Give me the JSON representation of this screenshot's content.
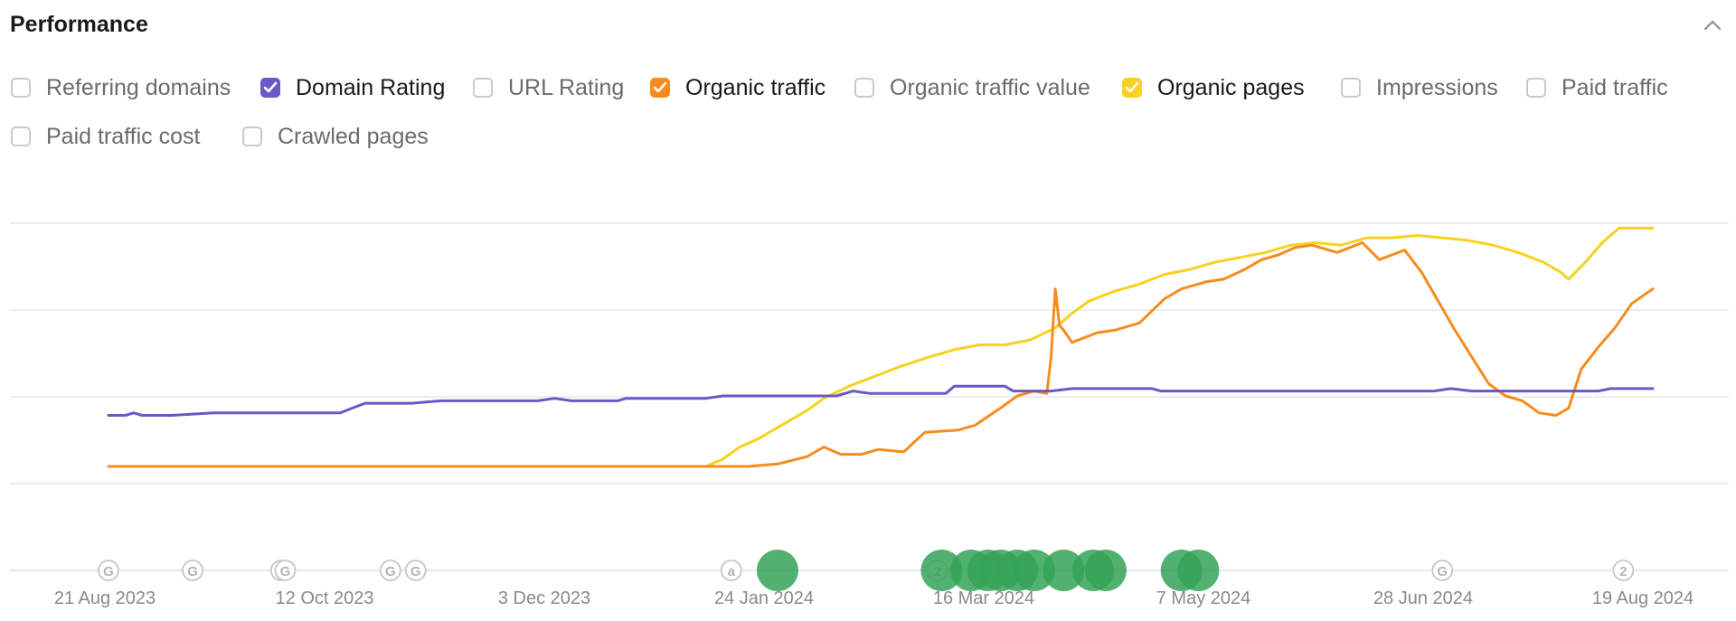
{
  "panel": {
    "title": "Performance"
  },
  "icons": {
    "collapse": "chevron-up-icon",
    "check": "check-icon"
  },
  "metrics": [
    {
      "label": "Referring domains",
      "checked": false,
      "color": ""
    },
    {
      "label": "Domain Rating",
      "checked": true,
      "color": "#6b57c9"
    },
    {
      "label": "URL Rating",
      "checked": false,
      "color": ""
    },
    {
      "label": "Organic traffic",
      "checked": true,
      "color": "#f68c1f"
    },
    {
      "label": "Organic traffic value",
      "checked": false,
      "color": ""
    },
    {
      "label": "Organic pages",
      "checked": true,
      "color": "#f7d21e"
    },
    {
      "label": "Impressions",
      "checked": false,
      "color": ""
    },
    {
      "label": "Paid traffic",
      "checked": false,
      "color": ""
    },
    {
      "label": "Paid traffic cost",
      "checked": false,
      "color": ""
    },
    {
      "label": "Crawled pages",
      "checked": false,
      "color": ""
    }
  ],
  "chart_data": {
    "type": "line",
    "x_ticks": [
      "21 Aug 2023",
      "12 Oct 2023",
      "3 Dec 2023",
      "24 Jan 2024",
      "16 Mar 2024",
      "7 May 2024",
      "28 Jun 2024",
      "19 Aug 2024"
    ],
    "x_domain": [
      "2023-08-21",
      "2024-08-19"
    ],
    "y_range": [
      0,
      100
    ],
    "grid": true,
    "series": [
      {
        "name": "Domain Rating",
        "color": "#6b57c9",
        "points": [
          [
            "2023-08-21",
            21
          ],
          [
            "2023-08-25",
            21
          ],
          [
            "2023-08-27",
            22
          ],
          [
            "2023-08-29",
            21
          ],
          [
            "2023-09-05",
            21
          ],
          [
            "2023-09-15",
            22
          ],
          [
            "2023-10-15",
            22
          ],
          [
            "2023-10-18",
            24
          ],
          [
            "2023-10-21",
            26
          ],
          [
            "2023-11-01",
            26
          ],
          [
            "2023-11-08",
            27
          ],
          [
            "2023-12-01",
            27
          ],
          [
            "2023-12-05",
            28
          ],
          [
            "2023-12-09",
            27
          ],
          [
            "2023-12-20",
            27
          ],
          [
            "2023-12-22",
            28
          ],
          [
            "2024-01-10",
            28
          ],
          [
            "2024-01-14",
            29
          ],
          [
            "2024-02-10",
            29
          ],
          [
            "2024-02-14",
            31
          ],
          [
            "2024-02-18",
            30
          ],
          [
            "2024-03-07",
            30
          ],
          [
            "2024-03-09",
            33
          ],
          [
            "2024-03-21",
            33
          ],
          [
            "2024-03-23",
            31
          ],
          [
            "2024-04-01",
            31
          ],
          [
            "2024-04-06",
            32
          ],
          [
            "2024-04-25",
            32
          ],
          [
            "2024-04-27",
            31
          ],
          [
            "2024-07-01",
            31
          ],
          [
            "2024-07-05",
            32
          ],
          [
            "2024-07-10",
            31
          ],
          [
            "2024-08-09",
            31
          ],
          [
            "2024-08-12",
            32
          ],
          [
            "2024-08-22",
            32
          ]
        ]
      },
      {
        "name": "Organic traffic",
        "color": "#f68c1f",
        "points": [
          [
            "2023-08-21",
            0
          ],
          [
            "2024-01-20",
            0
          ],
          [
            "2024-01-27",
            1
          ],
          [
            "2024-02-03",
            4
          ],
          [
            "2024-02-07",
            8
          ],
          [
            "2024-02-11",
            5
          ],
          [
            "2024-02-16",
            5
          ],
          [
            "2024-02-20",
            7
          ],
          [
            "2024-02-26",
            6
          ],
          [
            "2024-03-02",
            14
          ],
          [
            "2024-03-10",
            15
          ],
          [
            "2024-03-14",
            17
          ],
          [
            "2024-03-20",
            24
          ],
          [
            "2024-03-24",
            29
          ],
          [
            "2024-03-28",
            31
          ],
          [
            "2024-03-31",
            30
          ],
          [
            "2024-04-01",
            45
          ],
          [
            "2024-04-02",
            73
          ],
          [
            "2024-04-03",
            58
          ],
          [
            "2024-04-04",
            56
          ],
          [
            "2024-04-06",
            51
          ],
          [
            "2024-04-09",
            53
          ],
          [
            "2024-04-12",
            55
          ],
          [
            "2024-04-16",
            56
          ],
          [
            "2024-04-22",
            59
          ],
          [
            "2024-04-28",
            69
          ],
          [
            "2024-05-02",
            73
          ],
          [
            "2024-05-08",
            76
          ],
          [
            "2024-05-12",
            77
          ],
          [
            "2024-05-17",
            81
          ],
          [
            "2024-05-21",
            85
          ],
          [
            "2024-05-25",
            87
          ],
          [
            "2024-05-29",
            90
          ],
          [
            "2024-06-02",
            91
          ],
          [
            "2024-06-08",
            88
          ],
          [
            "2024-06-14",
            92
          ],
          [
            "2024-06-18",
            85
          ],
          [
            "2024-06-24",
            89
          ],
          [
            "2024-06-28",
            80
          ],
          [
            "2024-07-02",
            68
          ],
          [
            "2024-07-06",
            56
          ],
          [
            "2024-07-10",
            45
          ],
          [
            "2024-07-14",
            34
          ],
          [
            "2024-07-18",
            29
          ],
          [
            "2024-07-22",
            27
          ],
          [
            "2024-07-26",
            22
          ],
          [
            "2024-07-30",
            21
          ],
          [
            "2024-08-02",
            24
          ],
          [
            "2024-08-05",
            40
          ],
          [
            "2024-08-09",
            49
          ],
          [
            "2024-08-13",
            57
          ],
          [
            "2024-08-17",
            67
          ],
          [
            "2024-08-22",
            73
          ]
        ]
      },
      {
        "name": "Organic pages",
        "color": "#f7d21e",
        "points": [
          [
            "2023-08-21",
            0
          ],
          [
            "2024-01-10",
            0
          ],
          [
            "2024-01-14",
            3
          ],
          [
            "2024-01-18",
            8
          ],
          [
            "2024-01-22",
            11
          ],
          [
            "2024-01-26",
            15
          ],
          [
            "2024-01-30",
            19
          ],
          [
            "2024-02-03",
            23
          ],
          [
            "2024-02-07",
            28
          ],
          [
            "2024-02-13",
            33
          ],
          [
            "2024-02-19",
            37
          ],
          [
            "2024-02-25",
            41
          ],
          [
            "2024-03-03",
            45
          ],
          [
            "2024-03-09",
            48
          ],
          [
            "2024-03-15",
            50
          ],
          [
            "2024-03-21",
            50
          ],
          [
            "2024-03-27",
            52
          ],
          [
            "2024-04-02",
            57
          ],
          [
            "2024-04-06",
            63
          ],
          [
            "2024-04-10",
            68
          ],
          [
            "2024-04-16",
            72
          ],
          [
            "2024-04-22",
            75
          ],
          [
            "2024-04-28",
            79
          ],
          [
            "2024-05-04",
            81
          ],
          [
            "2024-05-10",
            84
          ],
          [
            "2024-05-16",
            86
          ],
          [
            "2024-05-22",
            88
          ],
          [
            "2024-05-28",
            91
          ],
          [
            "2024-06-03",
            92
          ],
          [
            "2024-06-09",
            91
          ],
          [
            "2024-06-15",
            94
          ],
          [
            "2024-06-21",
            94
          ],
          [
            "2024-06-27",
            95
          ],
          [
            "2024-07-03",
            94
          ],
          [
            "2024-07-09",
            93
          ],
          [
            "2024-07-15",
            91
          ],
          [
            "2024-07-21",
            88
          ],
          [
            "2024-07-27",
            84
          ],
          [
            "2024-07-31",
            80
          ],
          [
            "2024-08-02",
            77
          ],
          [
            "2024-08-06",
            84
          ],
          [
            "2024-08-10",
            92
          ],
          [
            "2024-08-14",
            98
          ],
          [
            "2024-08-22",
            98
          ]
        ]
      }
    ],
    "annotation_markers": [
      {
        "type": "google-update",
        "label": "G",
        "date": "2023-08-21"
      },
      {
        "type": "google-update",
        "label": "G",
        "date": "2023-09-10"
      },
      {
        "type": "google-update",
        "label": "G",
        "date": "2023-10-01"
      },
      {
        "type": "google-update",
        "label": "G",
        "date": "2023-10-02"
      },
      {
        "type": "google-update",
        "label": "G",
        "date": "2023-10-27"
      },
      {
        "type": "google-update",
        "label": "G",
        "date": "2023-11-02"
      },
      {
        "type": "annotation",
        "label": "a",
        "date": "2024-01-16"
      },
      {
        "type": "google-update",
        "label": "2",
        "date": "2024-03-05"
      },
      {
        "type": "google-update",
        "label": "G",
        "date": "2024-07-03"
      },
      {
        "type": "google-update",
        "label": "2",
        "date": "2024-08-15"
      }
    ],
    "event_markers": [
      "2024-01-27",
      "2024-03-06",
      "2024-03-13",
      "2024-03-17",
      "2024-03-20",
      "2024-03-24",
      "2024-03-28",
      "2024-04-04",
      "2024-04-11",
      "2024-04-14",
      "2024-05-02",
      "2024-05-06"
    ],
    "marker_color": "#34a357"
  }
}
